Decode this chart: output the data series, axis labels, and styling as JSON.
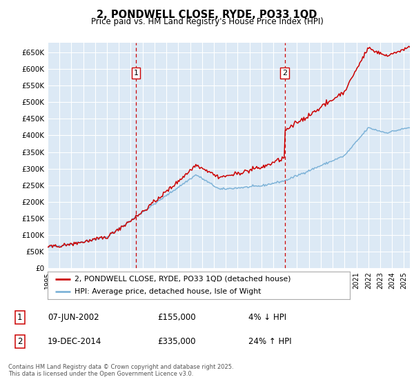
{
  "title": "2, PONDWELL CLOSE, RYDE, PO33 1QD",
  "subtitle": "Price paid vs. HM Land Registry's House Price Index (HPI)",
  "ylim": [
    0,
    680000
  ],
  "yticks": [
    0,
    50000,
    100000,
    150000,
    200000,
    250000,
    300000,
    350000,
    400000,
    450000,
    500000,
    550000,
    600000,
    650000
  ],
  "ytick_labels": [
    "£0",
    "£50K",
    "£100K",
    "£150K",
    "£200K",
    "£250K",
    "£300K",
    "£350K",
    "£400K",
    "£450K",
    "£500K",
    "£550K",
    "£600K",
    "£650K"
  ],
  "xlim_start": 1995.0,
  "xlim_end": 2025.5,
  "plot_bg_color": "#dce9f5",
  "grid_color": "#ffffff",
  "sale1_date": 2002.44,
  "sale1_price": 155000,
  "sale1_label": "1",
  "sale1_text": "07-JUN-2002",
  "sale1_pct": "4% ↓ HPI",
  "sale2_date": 2014.97,
  "sale2_price": 335000,
  "sale2_label": "2",
  "sale2_text": "19-DEC-2014",
  "sale2_pct": "24% ↑ HPI",
  "line_color_house": "#cc0000",
  "line_color_hpi": "#7eb3d8",
  "legend_house": "2, PONDWELL CLOSE, RYDE, PO33 1QD (detached house)",
  "legend_hpi": "HPI: Average price, detached house, Isle of Wight",
  "footnote": "Contains HM Land Registry data © Crown copyright and database right 2025.\nThis data is licensed under the Open Government Licence v3.0.",
  "xtick_years": [
    1995,
    1996,
    1997,
    1998,
    1999,
    2000,
    2001,
    2002,
    2003,
    2004,
    2005,
    2006,
    2007,
    2008,
    2009,
    2010,
    2011,
    2012,
    2013,
    2014,
    2015,
    2016,
    2017,
    2018,
    2019,
    2020,
    2021,
    2022,
    2023,
    2024,
    2025
  ]
}
